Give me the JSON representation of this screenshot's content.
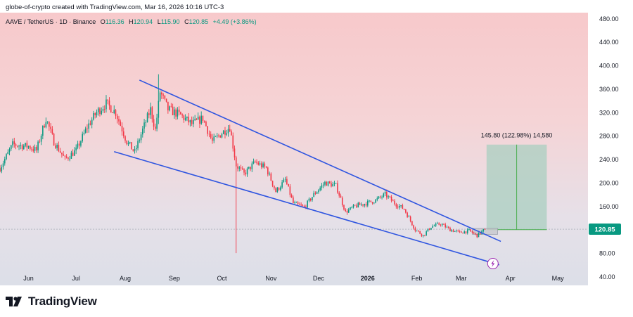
{
  "header": {
    "attribution": "globe-of-crypto created with TradingView.com, Mar 16, 2026 10:16 UTC-3"
  },
  "symbol_bar": {
    "symbol": "AAVE / TetherUS · 1D · Binance",
    "open_label": "O",
    "open": "116.36",
    "high_label": "H",
    "high": "120.94",
    "low_label": "L",
    "low": "115.90",
    "close_label": "C",
    "close": "120.85",
    "change": "+4.49 (+3.86%)"
  },
  "footer": {
    "brand": "TradingView"
  },
  "colors": {
    "up": "#089981",
    "down": "#f23645",
    "trendline": "#2f55e0",
    "target_box": "#a9cfc0",
    "price_tag": "#089981"
  },
  "chart_data": {
    "type": "candlestick",
    "title": "AAVE / TetherUS · 1D · Binance",
    "y_ticks": [
      40,
      80,
      120,
      160,
      200,
      240,
      280,
      320,
      360,
      400,
      440,
      480
    ],
    "y_tick_labels": [
      "40.00",
      "80.00",
      "120.00",
      "160.00",
      "200.00",
      "240.00",
      "280.00",
      "320.00",
      "360.00",
      "400.00",
      "440.00",
      "480.00"
    ],
    "ylim": [
      25,
      490
    ],
    "x_ticks": [
      "Jun",
      "Jul",
      "Aug",
      "Sep",
      "Oct",
      "Nov",
      "Dec",
      "2026",
      "Feb",
      "Mar",
      "Apr",
      "May"
    ],
    "x_tick_dates": [
      "2025-06-01",
      "2025-07-01",
      "2025-08-01",
      "2025-09-01",
      "2025-10-01",
      "2025-11-01",
      "2025-12-01",
      "2026-01-01",
      "2026-02-01",
      "2026-03-01",
      "2026-04-01",
      "2026-05-01"
    ],
    "xlim": [
      "2025-05-14",
      "2026-05-20"
    ],
    "price_path": [
      [
        "2025-05-14",
        225
      ],
      [
        "2025-05-22",
        265
      ],
      [
        "2025-06-01",
        262
      ],
      [
        "2025-06-06",
        255
      ],
      [
        "2025-06-12",
        310
      ],
      [
        "2025-06-17",
        270
      ],
      [
        "2025-06-24",
        240
      ],
      [
        "2025-07-01",
        255
      ],
      [
        "2025-07-08",
        295
      ],
      [
        "2025-07-14",
        320
      ],
      [
        "2025-07-20",
        335
      ],
      [
        "2025-07-26",
        320
      ],
      [
        "2025-08-02",
        270
      ],
      [
        "2025-08-07",
        252
      ],
      [
        "2025-08-12",
        290
      ],
      [
        "2025-08-17",
        325
      ],
      [
        "2025-08-20",
        290
      ],
      [
        "2025-08-23",
        355
      ],
      [
        "2025-08-28",
        325
      ],
      [
        "2025-09-05",
        315
      ],
      [
        "2025-09-12",
        300
      ],
      [
        "2025-09-19",
        310
      ],
      [
        "2025-09-25",
        270
      ],
      [
        "2025-10-01",
        285
      ],
      [
        "2025-10-06",
        295
      ],
      [
        "2025-10-10",
        230
      ],
      [
        "2025-10-15",
        215
      ],
      [
        "2025-10-22",
        235
      ],
      [
        "2025-10-29",
        225
      ],
      [
        "2025-11-04",
        185
      ],
      [
        "2025-11-10",
        205
      ],
      [
        "2025-11-15",
        165
      ],
      [
        "2025-11-22",
        158
      ],
      [
        "2025-11-28",
        180
      ],
      [
        "2025-12-05",
        200
      ],
      [
        "2025-12-12",
        195
      ],
      [
        "2025-12-18",
        150
      ],
      [
        "2025-12-24",
        160
      ],
      [
        "2025-12-31",
        165
      ],
      [
        "2026-01-06",
        170
      ],
      [
        "2026-01-12",
        180
      ],
      [
        "2026-01-18",
        165
      ],
      [
        "2026-01-24",
        155
      ],
      [
        "2026-01-31",
        120
      ],
      [
        "2026-02-05",
        110
      ],
      [
        "2026-02-10",
        125
      ],
      [
        "2026-02-16",
        130
      ],
      [
        "2026-02-22",
        120
      ],
      [
        "2026-02-28",
        115
      ],
      [
        "2026-03-06",
        118
      ],
      [
        "2026-03-11",
        110
      ],
      [
        "2026-03-16",
        121
      ]
    ],
    "wicks": [
      {
        "date": "2025-08-22",
        "low": 300,
        "high": 385
      },
      {
        "date": "2025-10-10",
        "low": 80,
        "high": 235
      }
    ],
    "trendlines": [
      {
        "name": "upper",
        "from": [
          "2025-08-10",
          375
        ],
        "to": [
          "2026-03-26",
          100
        ]
      },
      {
        "name": "lower",
        "from": [
          "2025-07-25",
          253
        ],
        "to": [
          "2026-03-25",
          60
        ]
      }
    ],
    "projection": {
      "from_date": "2026-03-17",
      "to_date": "2026-04-24",
      "low": 120,
      "high": 265,
      "label": "145.80 (122.98%) 14,580"
    },
    "consolidation_box": {
      "from_date": "2026-03-08",
      "to_date": "2026-03-24",
      "low": 112,
      "high": 122
    },
    "last_price": 120.85,
    "last_price_label": "120.85",
    "event_marker_date": "2026-03-21"
  }
}
